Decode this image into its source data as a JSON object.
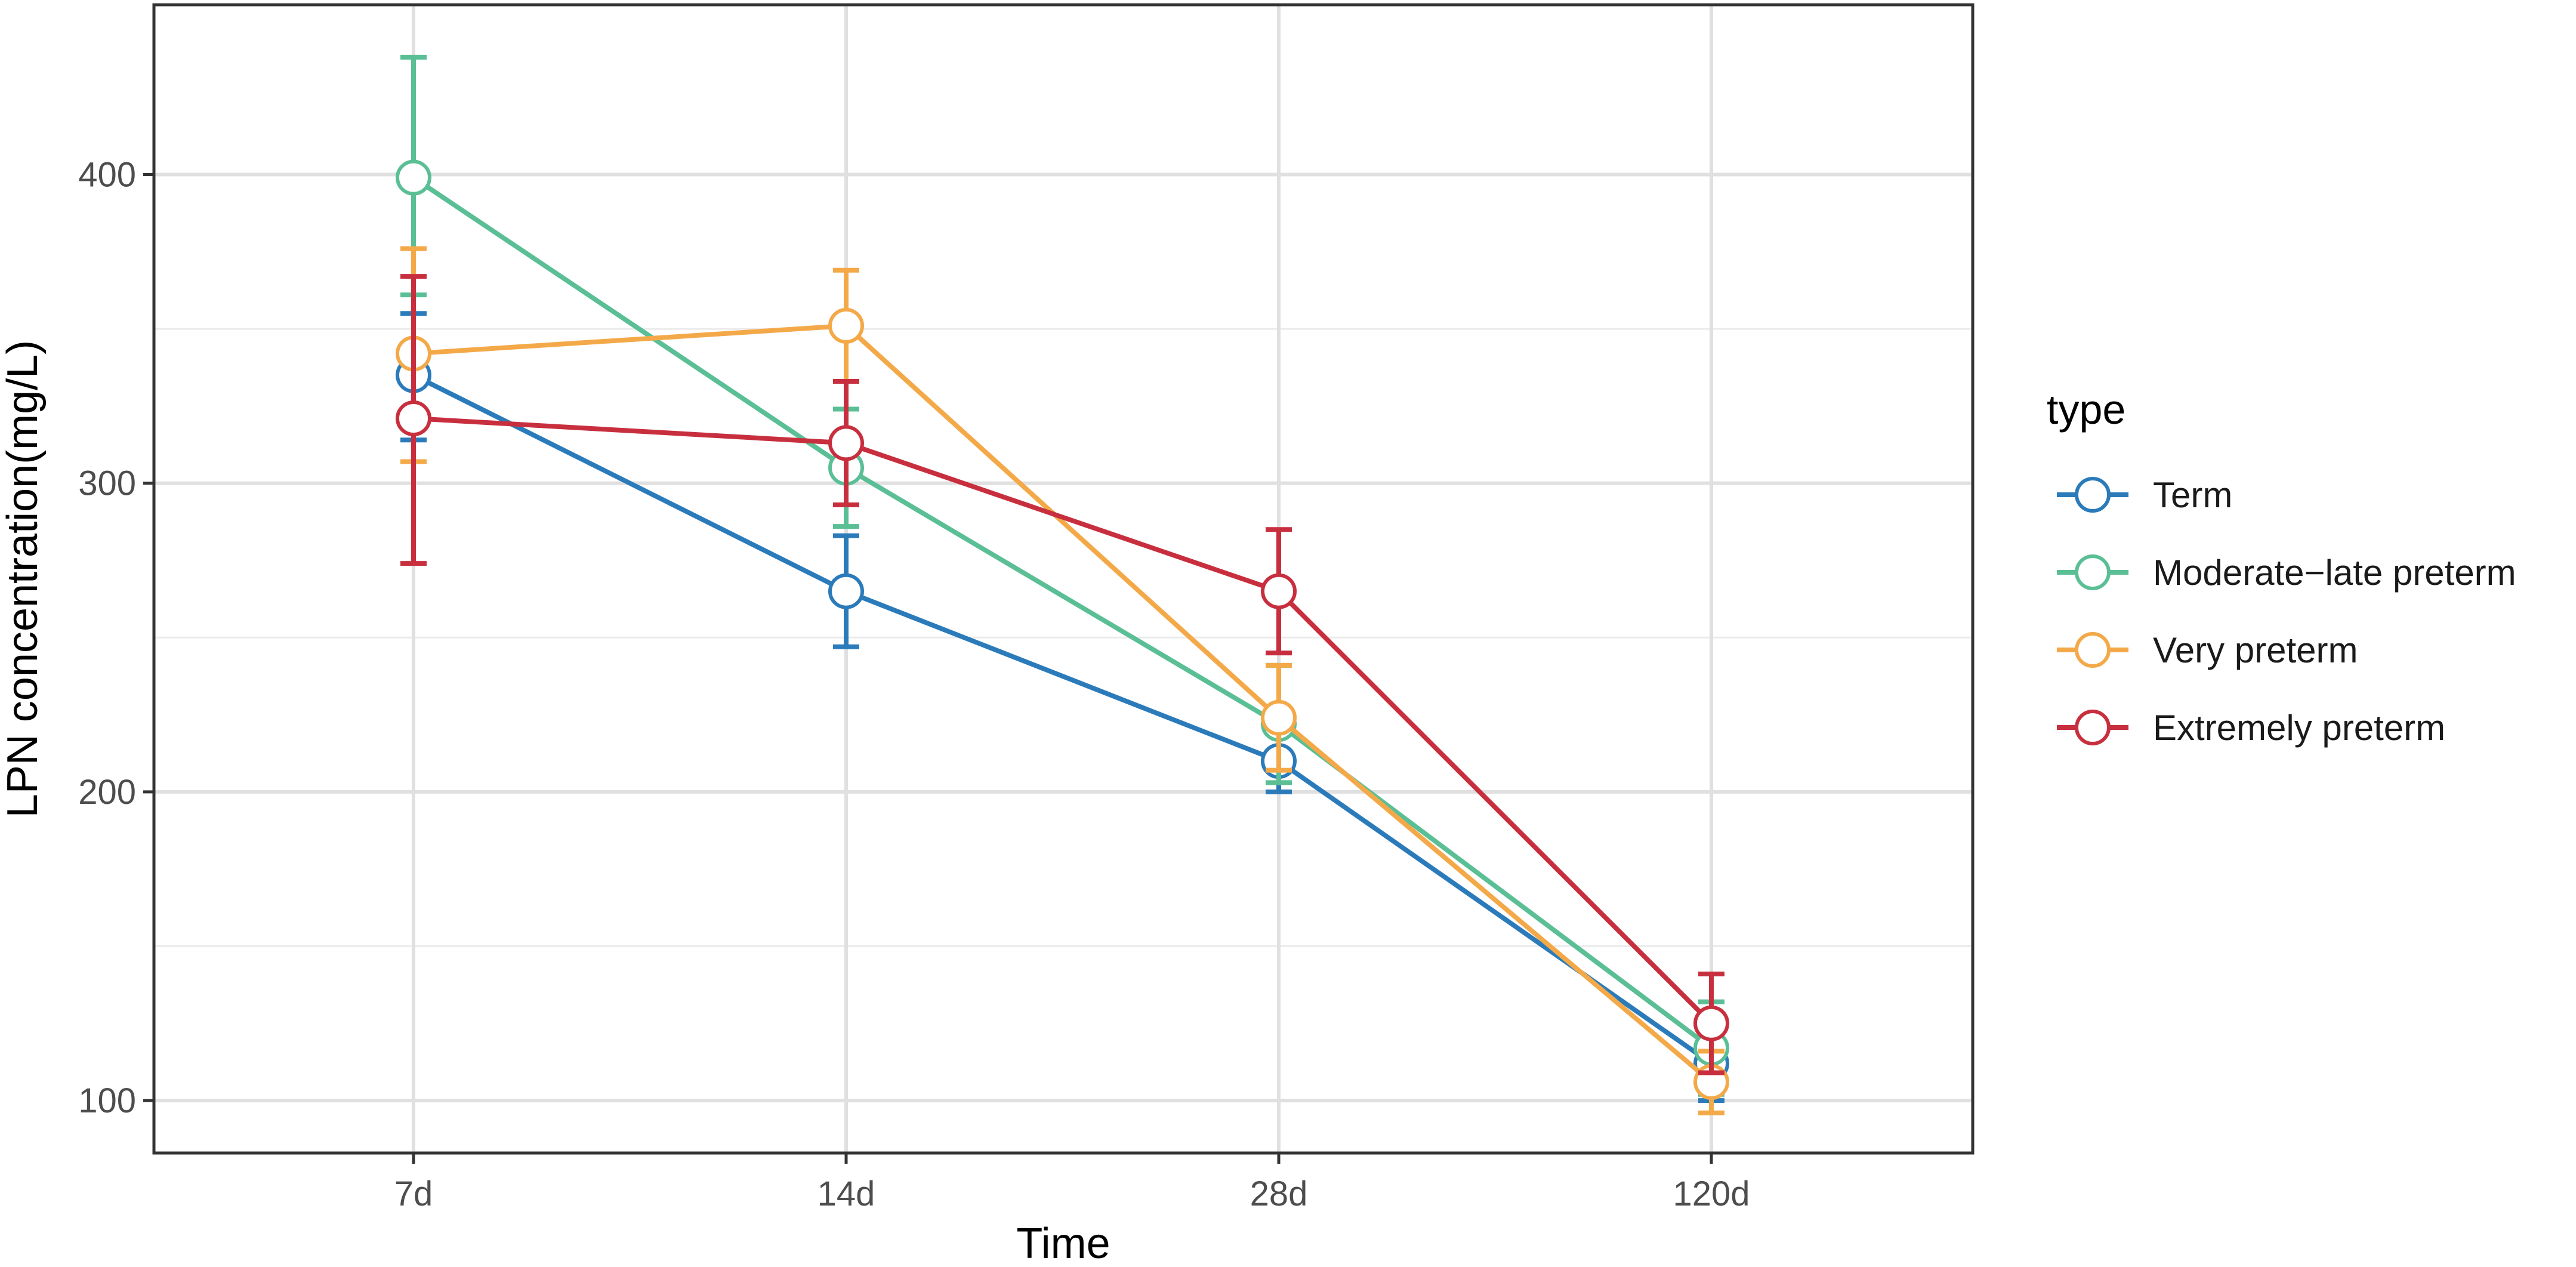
{
  "chart_data": {
    "type": "line",
    "categories": [
      "7d",
      "14d",
      "28d",
      "120d"
    ],
    "xlabel": "Time",
    "ylabel": "LPN concentration(mg/L)",
    "ylim": [
      83,
      455
    ],
    "yticks": [
      100,
      200,
      300,
      400
    ],
    "grid": true,
    "legend": {
      "title": "type",
      "position": "right"
    },
    "series": [
      {
        "name": "Term",
        "color": "#2b7bba",
        "values": [
          335,
          265,
          210,
          112
        ],
        "err_low": [
          314,
          247,
          200,
          100
        ],
        "err_high": [
          355,
          283,
          220,
          124
        ]
      },
      {
        "name": "Moderate−late preterm",
        "color": "#5bbf96",
        "values": [
          399,
          305,
          222,
          117
        ],
        "err_low": [
          361,
          286,
          203,
          102
        ],
        "err_high": [
          438,
          324,
          241,
          132
        ]
      },
      {
        "name": "Very preterm",
        "color": "#f4a949",
        "values": [
          342,
          351,
          224,
          106
        ],
        "err_low": [
          307,
          333,
          207,
          96
        ],
        "err_high": [
          376,
          369,
          241,
          116
        ]
      },
      {
        "name": "Extremely preterm",
        "color": "#c82f3e",
        "values": [
          321,
          313,
          265,
          125
        ],
        "err_low": [
          274,
          293,
          245,
          109
        ],
        "err_high": [
          367,
          333,
          285,
          141
        ]
      }
    ]
  }
}
